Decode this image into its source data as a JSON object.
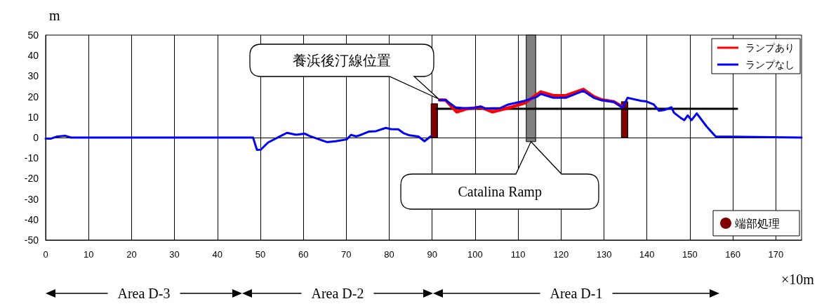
{
  "chart_data": {
    "type": "line",
    "xlabel": "×10m",
    "ylabel": "m",
    "xlim": [
      0,
      176
    ],
    "xticks": [
      0,
      10,
      20,
      30,
      40,
      50,
      60,
      70,
      80,
      90,
      100,
      110,
      120,
      130,
      140,
      150,
      160,
      170
    ],
    "ylim": [
      -50,
      50
    ],
    "yticks": [
      -50,
      -40,
      -30,
      -20,
      -10,
      0,
      10,
      20,
      30,
      40,
      50
    ],
    "grid": "x",
    "legend": "top right",
    "marker": "none",
    "line_style": "solid",
    "ref_lines": [
      {
        "axis": "y",
        "value": 0,
        "color": "#000000"
      }
    ],
    "annotations": [
      "養浜後汀線位置",
      {
        "text": "Catalina Ramp",
        "x": 113,
        "y": -2
      },
      "Area D-3",
      "Area D-2",
      "Area D-1"
    ],
    "series": [
      {
        "type": "bar",
        "name": "端部処理",
        "color": "#800000",
        "x": [
          90.5,
          134.8
        ],
        "base": [
          0,
          0
        ],
        "values": [
          16.5,
          17.5
        ]
      },
      {
        "type": "bar",
        "color": "#808080",
        "x": [
          113
        ],
        "base": [
          -2
        ],
        "values": [
          52
        ]
      },
      {
        "type": "line",
        "color": "#000000",
        "x": [
          91,
          161
        ],
        "values": [
          14,
          14
        ]
      },
      {
        "name": "ランプあり",
        "color": "#ff0000",
        "x": [
          91.7,
          93.1,
          95.7,
          98,
          101.3,
          104,
          108.3,
          111.5,
          114.4,
          115.3,
          118.2,
          121.1,
          125.2,
          127.6,
          129.4,
          132.3,
          134.3
        ],
        "values": [
          18.3,
          18.3,
          12.5,
          14,
          14.8,
          12.5,
          14.8,
          16.8,
          21,
          22.3,
          20.5,
          20.5,
          23.5,
          20,
          18.5,
          17.5,
          15
        ]
      },
      {
        "name": "ランプなし",
        "color": "#0000ff",
        "x": [
          0,
          1.3,
          2.5,
          4.5,
          5.9,
          48.3,
          49.2,
          50.1,
          51.8,
          54.7,
          56.2,
          58.3,
          60.3,
          61.4,
          63.7,
          65.5,
          67.5,
          70.1,
          71.1,
          72.3,
          73.4,
          75.2,
          76.9,
          79.2,
          80.4,
          82.1,
          83.3,
          84.7,
          86.8,
          88.2,
          89.6,
          90.5,
          91.7,
          93.1,
          95.4,
          97.2,
          99.6,
          101.3,
          102.4,
          105.9,
          107.7,
          111.5,
          114.4,
          115.3,
          118.2,
          121.1,
          125.2,
          127.6,
          129.4,
          132.3,
          134.3,
          135.5,
          138.7,
          139.9,
          141.6,
          142.8,
          144,
          145.7,
          146.3,
          147.8,
          148.7,
          149.5,
          150.4,
          151.6,
          153.9,
          156,
          176
        ],
        "values": [
          -0.5,
          -0.5,
          0.4,
          0.9,
          0,
          0,
          -6,
          -5.9,
          -2.4,
          0.7,
          2.3,
          1.4,
          1.9,
          0.8,
          -0.9,
          -2.2,
          -1.8,
          -0.9,
          1.3,
          0.6,
          1.3,
          2.9,
          3.1,
          4.7,
          4.1,
          4,
          2.2,
          1.1,
          0.5,
          -1.8,
          0.5,
          null,
          18.3,
          18.3,
          14.7,
          14.4,
          14.4,
          15.2,
          14.2,
          14.4,
          16.1,
          17.9,
          19.9,
          21.3,
          19.4,
          19.4,
          22.8,
          19.4,
          18.2,
          17.4,
          14.6,
          19.4,
          17.9,
          17.6,
          16.1,
          13.1,
          13.4,
          14.8,
          12.1,
          9.7,
          8.5,
          10.8,
          8.5,
          11.8,
          5.4,
          0.5,
          0
        ]
      }
    ]
  }
}
